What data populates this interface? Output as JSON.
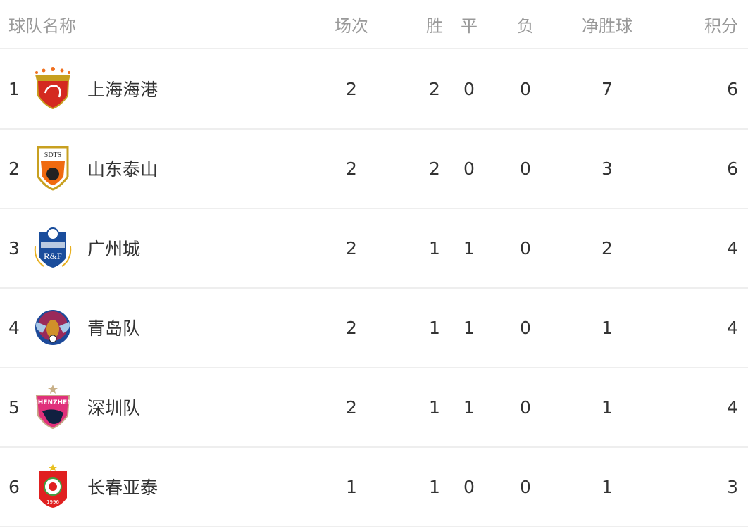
{
  "header": {
    "name": "球队名称",
    "played": "场次",
    "win": "胜",
    "draw": "平",
    "loss": "负",
    "gd": "净胜球",
    "pts": "积分"
  },
  "rows": [
    {
      "rank": "1",
      "name": "上海海港",
      "logo": "shanghai-port-logo",
      "played": "2",
      "win": "2",
      "draw": "0",
      "loss": "0",
      "gd": "7",
      "pts": "6"
    },
    {
      "rank": "2",
      "name": "山东泰山",
      "logo": "shandong-taishan-logo",
      "logo_text": "SDTS",
      "played": "2",
      "win": "2",
      "draw": "0",
      "loss": "0",
      "gd": "3",
      "pts": "6"
    },
    {
      "rank": "3",
      "name": "广州城",
      "logo": "guangzhou-city-logo",
      "logo_text": "R&F",
      "played": "2",
      "win": "1",
      "draw": "1",
      "loss": "0",
      "gd": "2",
      "pts": "4"
    },
    {
      "rank": "4",
      "name": "青岛队",
      "logo": "qingdao-logo",
      "played": "2",
      "win": "1",
      "draw": "1",
      "loss": "0",
      "gd": "1",
      "pts": "4"
    },
    {
      "rank": "5",
      "name": "深圳队",
      "logo": "shenzhen-logo",
      "logo_text": "SHENZHEN",
      "played": "2",
      "win": "1",
      "draw": "1",
      "loss": "0",
      "gd": "1",
      "pts": "4"
    },
    {
      "rank": "6",
      "name": "长春亚泰",
      "logo": "changchun-yatai-logo",
      "logo_text": "1996",
      "played": "1",
      "win": "1",
      "draw": "0",
      "loss": "0",
      "gd": "1",
      "pts": "3"
    }
  ]
}
